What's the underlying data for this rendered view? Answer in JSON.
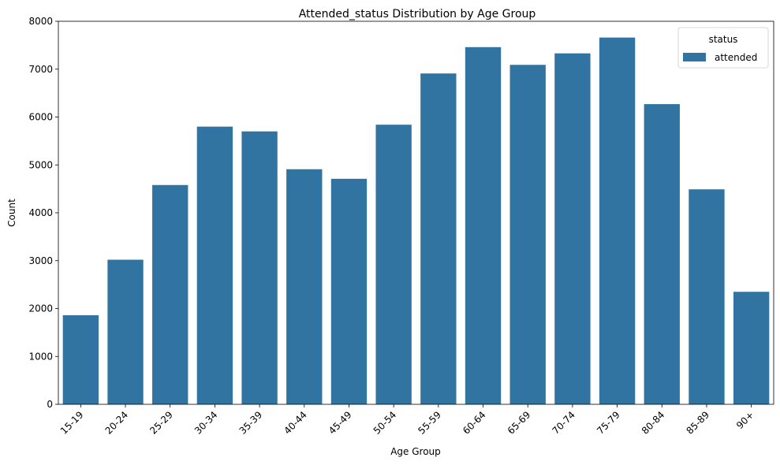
{
  "chart_data": {
    "type": "bar",
    "title": "Attended_status Distribution by Age Group",
    "xlabel": "Age Group",
    "ylabel": "Count",
    "categories": [
      "15-19",
      "20-24",
      "25-29",
      "30-34",
      "35-39",
      "40-44",
      "45-49",
      "50-54",
      "55-59",
      "60-64",
      "65-69",
      "70-74",
      "75-79",
      "80-84",
      "85-89",
      "90+"
    ],
    "series": [
      {
        "name": "attended",
        "color": "#3274a1",
        "values": [
          1860,
          3020,
          4580,
          5800,
          5700,
          4910,
          4710,
          5840,
          6910,
          7460,
          7090,
          7330,
          7660,
          6270,
          4490,
          2350
        ]
      }
    ],
    "ylim": [
      0,
      8000
    ],
    "yticks": [
      0,
      1000,
      2000,
      3000,
      4000,
      5000,
      6000,
      7000,
      8000
    ],
    "grid": false,
    "legend": {
      "title": "status",
      "placement": "top-right"
    }
  }
}
